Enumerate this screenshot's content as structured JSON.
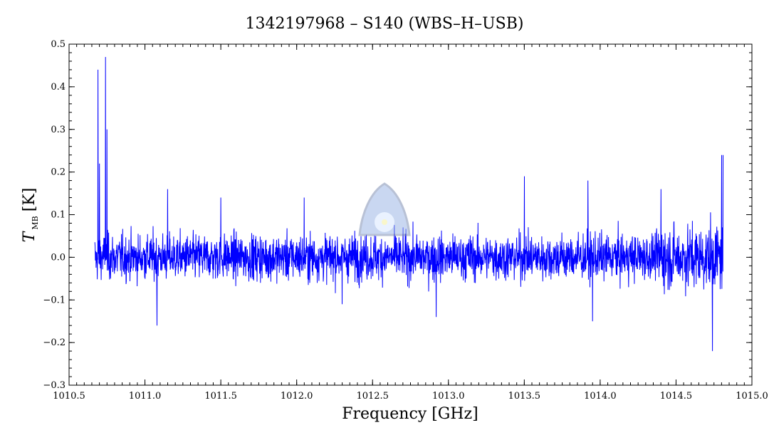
{
  "chart_data": {
    "type": "line",
    "title": "1342197968 – S140 (WBS–H–USB)",
    "xlabel": "Frequency [GHz]",
    "ylabel": {
      "main": "T",
      "subscript": "MB",
      "unit": "[K]"
    },
    "xlim": [
      1010.5,
      1015.0
    ],
    "ylim": [
      -0.3,
      0.5
    ],
    "x_ticks": [
      1010.5,
      1011.0,
      1011.5,
      1012.0,
      1012.5,
      1013.0,
      1013.5,
      1014.0,
      1014.5,
      1015.0
    ],
    "x_tick_labels": [
      "1010.5",
      "1011.0",
      "1011.5",
      "1012.0",
      "1012.5",
      "1013.0",
      "1013.5",
      "1014.0",
      "1014.5",
      "1015.0"
    ],
    "y_ticks": [
      -0.3,
      -0.2,
      -0.1,
      0.0,
      0.1,
      0.2,
      0.3,
      0.4,
      0.5
    ],
    "y_tick_labels": [
      "−0.3",
      "−0.2",
      "−0.1",
      "0.0",
      "0.1",
      "0.2",
      "0.3",
      "0.4",
      "0.5"
    ],
    "grid": false,
    "series_color": "#0000ff",
    "series": [
      {
        "x_start": 1010.67,
        "x_end": 1014.81,
        "baseline": 0.0,
        "noise_rms": 0.05,
        "spikes": [
          {
            "x": 1010.68,
            "y": 0.46
          },
          {
            "x": 1010.69,
            "y": 0.44
          },
          {
            "x": 1010.7,
            "y": 0.22
          },
          {
            "x": 1010.74,
            "y": 0.47
          },
          {
            "x": 1010.75,
            "y": 0.3
          },
          {
            "x": 1010.68,
            "y": 0.01
          },
          {
            "x": 1011.15,
            "y": 0.16
          },
          {
            "x": 1011.08,
            "y": -0.16
          },
          {
            "x": 1011.5,
            "y": 0.14
          },
          {
            "x": 1012.05,
            "y": 0.14
          },
          {
            "x": 1012.3,
            "y": -0.11
          },
          {
            "x": 1012.92,
            "y": -0.14
          },
          {
            "x": 1013.5,
            "y": 0.19
          },
          {
            "x": 1013.92,
            "y": 0.18
          },
          {
            "x": 1013.95,
            "y": -0.15
          },
          {
            "x": 1014.4,
            "y": 0.16
          },
          {
            "x": 1014.74,
            "y": -0.22
          },
          {
            "x": 1014.8,
            "y": 0.24
          },
          {
            "x": 1014.81,
            "y": 0.24
          }
        ]
      }
    ]
  }
}
